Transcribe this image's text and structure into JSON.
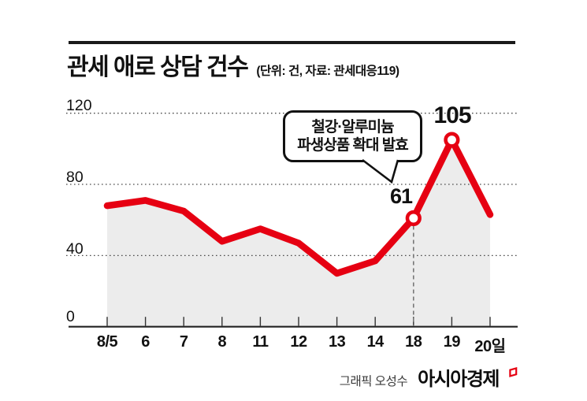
{
  "header": {
    "title": "관세 애로 상담 건수",
    "subtitle": "(단위: 건, 자료: 관세대응119)"
  },
  "footer": {
    "credit": "그래픽 오성수",
    "brand": "아시아경제"
  },
  "colors": {
    "line": "#e60012",
    "area": "#ececec",
    "axis": "#222222",
    "grid_dot": "#4d4d4d",
    "tick": "#333333",
    "drop_line": "#777777",
    "callout_border": "#111111",
    "brand_red": "#e60012"
  },
  "chart_data": {
    "type": "line",
    "title": "관세 애로 상담 건수",
    "units_note": "단위: 건",
    "source_note": "자료: 관세대응119",
    "categories": [
      "8/5",
      "6",
      "7",
      "8",
      "11",
      "12",
      "13",
      "14",
      "18",
      "19",
      "20일"
    ],
    "values": [
      68,
      71,
      65,
      48,
      55,
      47,
      30,
      37,
      61,
      105,
      63
    ],
    "yticks": [
      0,
      40,
      80,
      120
    ],
    "ylim": [
      0,
      120
    ],
    "grid": "horizontal-dotted",
    "legend": "none",
    "area_fill": true,
    "highlight": [
      {
        "category": "18",
        "value": 61,
        "label": "61",
        "marker": "open-circle",
        "dashed_drop_line": true
      },
      {
        "category": "19",
        "value": 105,
        "label": "105",
        "marker": "open-circle",
        "dashed_drop_line": false
      }
    ],
    "callout": {
      "line1": "철강·알루미늄",
      "line2": "파생상품 확대 발효",
      "points_to_category": "18"
    }
  }
}
